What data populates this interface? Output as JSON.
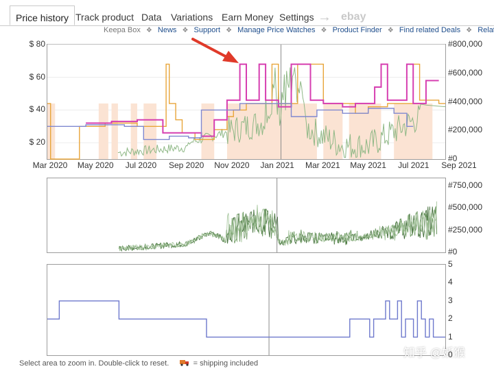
{
  "tabs": [
    {
      "label": "Price history",
      "active": true
    },
    {
      "label": "Track product",
      "active": false
    },
    {
      "label": "Variations",
      "active": false
    },
    {
      "label": "Earn Money",
      "active": false
    },
    {
      "label": "Settings",
      "active": false
    }
  ],
  "tab_data": "Data",
  "tab_arrow_glyph": "→",
  "tab_ebay": "ebay",
  "links": {
    "first": "Keepa Box",
    "items": [
      "News",
      "Support",
      "Manage Price Watches",
      "Product Finder",
      "Find related Deals",
      "Related Be"
    ],
    "separator": "❖"
  },
  "chart_data": [
    {
      "type": "line",
      "name": "price",
      "y_left_ticks": [
        "$ 20",
        "$ 40",
        "$ 60",
        "$ 80"
      ],
      "y_right_ticks": [
        "#0",
        "#200,000",
        "#400,000",
        "#600,000",
        "#800,000"
      ],
      "x_ticks": [
        "Mar 2020",
        "May 2020",
        "Jul 2020",
        "Sep 2020",
        "Nov 2020",
        "Jan 2021",
        "Mar 2021",
        "May 2021",
        "Jul 2021",
        "Sep 2021"
      ],
      "ylim": [
        10,
        80
      ],
      "y2lim": [
        0,
        800000
      ],
      "series": [
        {
          "color": "#e8a53a",
          "values": [
            [
              0,
              44
            ],
            [
              0.5,
              44
            ],
            [
              0.5,
              10
            ],
            [
              5,
              10
            ],
            [
              5,
              30
            ],
            [
              9,
              30
            ],
            [
              9,
              32
            ],
            [
              14,
              32
            ],
            [
              14,
              30
            ],
            [
              18.5,
              30
            ],
            [
              18.5,
              68
            ],
            [
              19,
              68
            ],
            [
              19,
              44
            ],
            [
              20,
              44
            ],
            [
              20,
              34
            ],
            [
              21,
              34
            ],
            [
              21,
              26
            ],
            [
              23,
              26
            ],
            [
              23,
              22
            ],
            [
              26,
              22
            ],
            [
              26,
              28
            ],
            [
              28,
              28
            ],
            [
              28,
              36
            ],
            [
              29,
              36
            ],
            [
              29,
              40
            ],
            [
              31,
              40
            ],
            [
              31,
              44
            ],
            [
              35,
              44
            ],
            [
              35,
              68
            ],
            [
              36,
              68
            ],
            [
              36,
              44
            ],
            [
              39,
              44
            ],
            [
              39,
              68
            ],
            [
              43,
              68
            ],
            [
              43,
              44
            ],
            [
              48,
              44
            ],
            [
              48,
              38
            ],
            [
              50,
              38
            ],
            [
              50,
              42
            ],
            [
              53,
              42
            ],
            [
              53,
              44
            ],
            [
              57,
              44
            ],
            [
              57,
              68
            ],
            [
              58,
              68
            ],
            [
              58,
              46
            ],
            [
              61,
              46
            ],
            [
              61,
              44
            ],
            [
              62,
              44
            ]
          ]
        },
        {
          "color": "#d63eb0",
          "values": [
            [
              6,
              32
            ],
            [
              10,
              32
            ],
            [
              10,
              33
            ],
            [
              14,
              33
            ],
            [
              14,
              34
            ],
            [
              18,
              34
            ],
            [
              18,
              26
            ],
            [
              24,
              26
            ],
            [
              24,
              24
            ],
            [
              26,
              24
            ],
            [
              26,
              34
            ],
            [
              28,
              34
            ],
            [
              28,
              46
            ],
            [
              30,
              46
            ],
            [
              30,
              68
            ],
            [
              31,
              68
            ],
            [
              31,
              46
            ],
            [
              33,
              46
            ],
            [
              33,
              68
            ],
            [
              34,
              68
            ],
            [
              34,
              46
            ],
            [
              36,
              46
            ],
            [
              36,
              42
            ],
            [
              38,
              42
            ],
            [
              38,
              68
            ],
            [
              41,
              68
            ],
            [
              41,
              46
            ],
            [
              43,
              46
            ],
            [
              43,
              44
            ],
            [
              46,
              44
            ],
            [
              46,
              42
            ],
            [
              48,
              42
            ],
            [
              48,
              44
            ],
            [
              51,
              44
            ],
            [
              51,
              54
            ],
            [
              52,
              54
            ],
            [
              52,
              68
            ],
            [
              53,
              68
            ],
            [
              53,
              46
            ],
            [
              56,
              46
            ],
            [
              56,
              68
            ],
            [
              57,
              68
            ],
            [
              57,
              44
            ],
            [
              59,
              44
            ],
            [
              59,
              58
            ],
            [
              61,
              58
            ]
          ]
        },
        {
          "color": "#7f88d0",
          "values": [
            [
              0,
              30
            ],
            [
              6,
              30
            ],
            [
              6,
              31
            ],
            [
              12,
              31
            ],
            [
              12,
              30
            ],
            [
              15,
              30
            ],
            [
              15,
              22
            ],
            [
              19,
              22
            ],
            [
              19,
              24
            ],
            [
              22,
              24
            ],
            [
              22,
              23
            ],
            [
              24,
              23
            ],
            [
              24,
              40
            ],
            [
              30,
              40
            ],
            [
              30,
              44
            ],
            [
              38,
              44
            ],
            [
              38,
              36
            ],
            [
              42,
              36
            ],
            [
              42,
              40
            ],
            [
              46,
              40
            ],
            [
              46,
              38
            ],
            [
              50,
              38
            ],
            [
              50,
              41
            ],
            [
              54,
              41
            ],
            [
              54,
              38
            ],
            [
              56,
              38
            ],
            [
              56,
              30
            ],
            [
              57,
              30
            ]
          ]
        }
      ],
      "rank_series_color": "#8fb886",
      "fill_color": "#fbe3d3"
    },
    {
      "type": "line",
      "name": "sales-rank-detail",
      "y_right_ticks": [
        "#0",
        "#250,000",
        "#500,000",
        "#750,000"
      ],
      "ylim": [
        0,
        800000
      ],
      "series": [
        {
          "color": "#4e7a45",
          "values": []
        }
      ]
    },
    {
      "type": "line",
      "name": "offer-count",
      "y_right_ticks": [
        "0",
        "1",
        "2",
        "3",
        "4",
        "5"
      ],
      "ylim": [
        0,
        5
      ],
      "series": [
        {
          "color": "#6d78cc",
          "values": [
            [
              0,
              2
            ],
            [
              3,
              2
            ],
            [
              3,
              3
            ],
            [
              18,
              3
            ],
            [
              18,
              2
            ],
            [
              40,
              2
            ],
            [
              40,
              1
            ],
            [
              76,
              1
            ],
            [
              76,
              2
            ],
            [
              81,
              2
            ],
            [
              81,
              1
            ],
            [
              82,
              1
            ],
            [
              82,
              2
            ],
            [
              85,
              2
            ],
            [
              85,
              3
            ],
            [
              86,
              3
            ],
            [
              86,
              2
            ],
            [
              88,
              2
            ],
            [
              88,
              3
            ],
            [
              89,
              3
            ],
            [
              89,
              1
            ],
            [
              90,
              1
            ],
            [
              90,
              2
            ],
            [
              92,
              2
            ],
            [
              92,
              1
            ],
            [
              93,
              1
            ],
            [
              93,
              3
            ],
            [
              94,
              3
            ],
            [
              94,
              2
            ],
            [
              95,
              2
            ],
            [
              95,
              1
            ],
            [
              96,
              1
            ],
            [
              96,
              2
            ],
            [
              97,
              2
            ],
            [
              97,
              1
            ],
            [
              100,
              1
            ]
          ]
        }
      ]
    }
  ],
  "footer": {
    "text": "Select area to zoom in. Double-click to reset.",
    "legend_icon": "truck-icon",
    "legend_text": "= shipping included"
  },
  "watermark": "知乎 @妖猴",
  "colors": {
    "price_orange": "#e8a53a",
    "price_magenta": "#d63eb0",
    "price_blue": "#7f88d0",
    "rank_green": "#8fb886",
    "annotation_arrow": "#e03a2a"
  }
}
